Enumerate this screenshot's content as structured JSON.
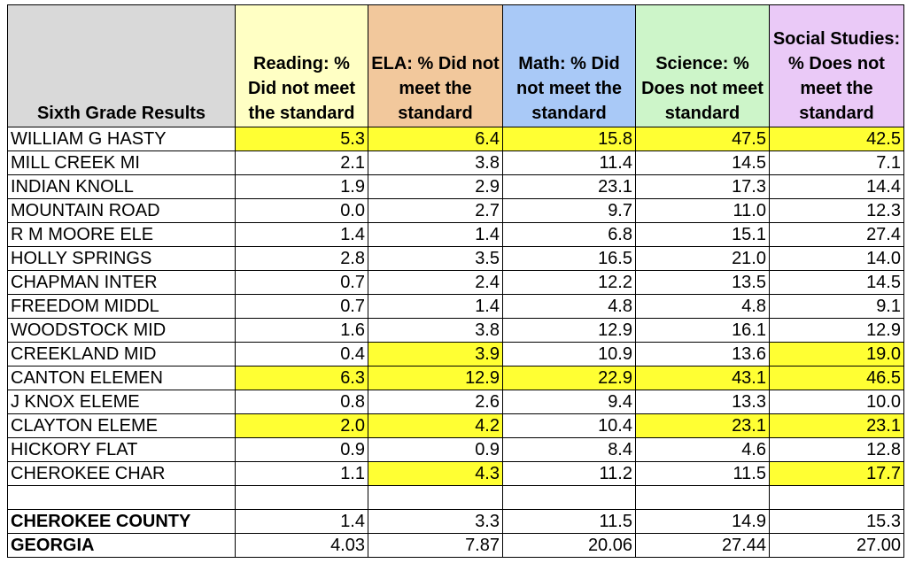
{
  "table": {
    "headers": [
      "Sixth Grade Results",
      "Reading: % Did not meet the standard",
      "ELA: % Did not meet the standard",
      "Math: % Did not meet the standard",
      "Science: % Does not meet standard",
      "Social Studies: % Does not meet the standard"
    ],
    "schools": [
      [
        "WILLIAM G HASTY",
        "5.3",
        "6.4",
        "15.8",
        "47.5",
        "42.5"
      ],
      [
        "MILL CREEK MI",
        "2.1",
        "3.8",
        "11.4",
        "14.5",
        "7.1"
      ],
      [
        "INDIAN KNOLL",
        "1.9",
        "2.9",
        "23.1",
        "17.3",
        "14.4"
      ],
      [
        "MOUNTAIN ROAD",
        "0.0",
        "2.7",
        "9.7",
        "11.0",
        "12.3"
      ],
      [
        "R M MOORE ELE",
        "1.4",
        "1.4",
        "6.8",
        "15.1",
        "27.4"
      ],
      [
        "HOLLY SPRINGS",
        "2.8",
        "3.5",
        "16.5",
        "21.0",
        "14.0"
      ],
      [
        "CHAPMAN INTER",
        "0.7",
        "2.4",
        "12.2",
        "13.5",
        "14.5"
      ],
      [
        "FREEDOM MIDDL",
        "0.7",
        "1.4",
        "4.8",
        "4.8",
        "9.1"
      ],
      [
        "WOODSTOCK MID",
        "1.6",
        "3.8",
        "12.9",
        "16.1",
        "12.9"
      ],
      [
        "CREEKLAND MID",
        "0.4",
        "3.9",
        "10.9",
        "13.6",
        "19.0"
      ],
      [
        "CANTON ELEMEN",
        "6.3",
        "12.9",
        "22.9",
        "43.1",
        "46.5"
      ],
      [
        "J KNOX ELEME",
        "0.8",
        "2.6",
        "9.4",
        "13.3",
        "10.0"
      ],
      [
        "CLAYTON ELEME",
        "2.0",
        "4.2",
        "10.4",
        "23.1",
        "23.1"
      ],
      [
        "HICKORY FLAT",
        "0.9",
        "0.9",
        "8.4",
        "4.6",
        "12.8"
      ],
      [
        "CHEROKEE CHAR",
        "1.1",
        "4.3",
        "11.2",
        "11.5",
        "17.7"
      ]
    ],
    "totals": [
      [
        "CHEROKEE COUNTY",
        "1.4",
        "3.3",
        "11.5",
        "14.9",
        "15.3"
      ],
      [
        "GEORGIA",
        "4.03",
        "7.87",
        "20.06",
        "27.44",
        "27.00"
      ]
    ]
  }
}
